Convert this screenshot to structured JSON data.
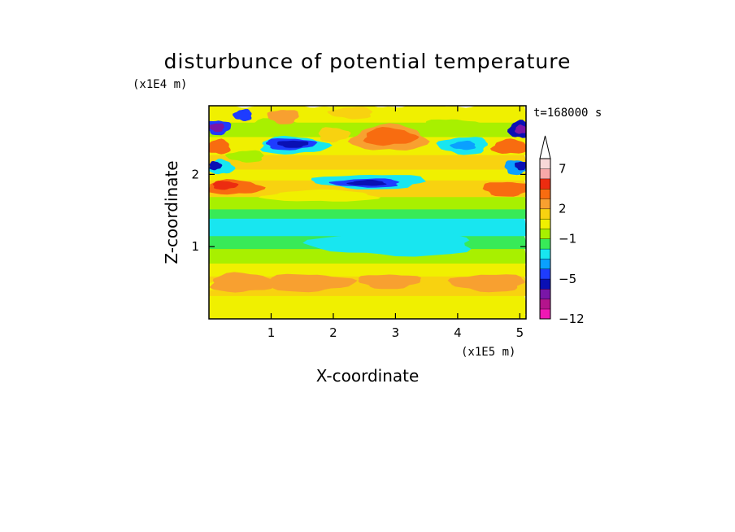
{
  "chart_data": {
    "type": "heatmap",
    "title": "disturbunce of potential temperature",
    "xlabel": "X-coordinate",
    "ylabel": "Z-coordinate",
    "x_unit": "(x1E5 m)",
    "y_unit": "(x1E4 m)",
    "time_label": "t=168000 s",
    "xlim": [
      0,
      5.1
    ],
    "ylim": [
      0,
      2.95
    ],
    "x_ticks": [
      1,
      2,
      3,
      4,
      5
    ],
    "x_tick_labels": [
      "1",
      "2",
      "3",
      "4",
      "5"
    ],
    "y_ticks": [
      1,
      2
    ],
    "y_tick_labels": [
      "1",
      "2"
    ],
    "colorbar": {
      "levels": [
        -12,
        -10,
        -8,
        -6,
        -5,
        -4,
        -3,
        -2,
        -1,
        0,
        1,
        2,
        3,
        4,
        5,
        7,
        9,
        11
      ],
      "labeled": [
        -12,
        -5,
        -1,
        2,
        7
      ],
      "labels": [
        "−12",
        "−5",
        "−1",
        "2",
        "7"
      ],
      "colors": [
        "#f018b4",
        "#b4148c",
        "#7a16a8",
        "#0a10b4",
        "#1e3cff",
        "#0aa0ff",
        "#18e6f0",
        "#38ea58",
        "#a8f000",
        "#f0f000",
        "#f8d210",
        "#f8a030",
        "#f86c10",
        "#ec2c10",
        "#f8a8a8",
        "#f8d8d8"
      ],
      "extend": "max"
    },
    "bands": [
      {
        "z": [
          0.0,
          0.1
        ],
        "level": 9
      },
      {
        "z": [
          0.1,
          0.35
        ],
        "level": 9
      },
      {
        "z": [
          0.35,
          0.62
        ],
        "level": 10
      },
      {
        "z": [
          0.62,
          0.8
        ],
        "level": 9
      },
      {
        "z": [
          0.8,
          1.0
        ],
        "level": 8
      },
      {
        "z": [
          1.0,
          1.18
        ],
        "level": 7
      },
      {
        "z": [
          1.18,
          1.42
        ],
        "level": 6
      },
      {
        "z": [
          1.42,
          1.55
        ],
        "level": 7
      },
      {
        "z": [
          1.55,
          1.72
        ],
        "level": 8
      },
      {
        "z": [
          1.72,
          1.95
        ],
        "level": 10
      },
      {
        "z": [
          1.95,
          2.1
        ],
        "level": 9
      },
      {
        "z": [
          2.1,
          2.3
        ],
        "level": 10
      },
      {
        "z": [
          2.3,
          2.55
        ],
        "level": 9
      },
      {
        "z": [
          2.55,
          2.75
        ],
        "level": 8
      },
      {
        "z": [
          2.75,
          2.95
        ],
        "level": 9
      }
    ],
    "features": [
      {
        "x": 0.1,
        "z": 0.45,
        "rx": 0.15,
        "rz": 0.06,
        "level": 9
      },
      {
        "x": 0.55,
        "z": 0.5,
        "rx": 0.55,
        "rz": 0.13,
        "level": 11
      },
      {
        "x": 1.6,
        "z": 0.5,
        "rx": 0.7,
        "rz": 0.12,
        "level": 11
      },
      {
        "x": 2.9,
        "z": 0.52,
        "rx": 0.5,
        "rz": 0.1,
        "level": 11
      },
      {
        "x": 4.5,
        "z": 0.5,
        "rx": 0.6,
        "rz": 0.12,
        "level": 11
      },
      {
        "x": 3.0,
        "z": 1.05,
        "rx": 1.3,
        "rz": 0.18,
        "level": 6
      },
      {
        "x": 1.8,
        "z": 1.7,
        "rx": 0.9,
        "rz": 0.08,
        "level": 9
      },
      {
        "x": 0.4,
        "z": 1.82,
        "rx": 0.45,
        "rz": 0.1,
        "level": 12
      },
      {
        "x": 0.25,
        "z": 1.85,
        "rx": 0.2,
        "rz": 0.06,
        "level": 13
      },
      {
        "x": 4.8,
        "z": 1.8,
        "rx": 0.4,
        "rz": 0.1,
        "level": 12
      },
      {
        "x": 2.6,
        "z": 1.9,
        "rx": 0.9,
        "rz": 0.1,
        "level": 6
      },
      {
        "x": 2.55,
        "z": 1.88,
        "rx": 0.55,
        "rz": 0.06,
        "level": 4
      },
      {
        "x": 2.55,
        "z": 1.88,
        "rx": 0.3,
        "rz": 0.04,
        "level": 3
      },
      {
        "x": 0.2,
        "z": 2.1,
        "rx": 0.2,
        "rz": 0.1,
        "level": 6
      },
      {
        "x": 0.1,
        "z": 2.12,
        "rx": 0.1,
        "rz": 0.06,
        "level": 3
      },
      {
        "x": 4.95,
        "z": 2.1,
        "rx": 0.2,
        "rz": 0.1,
        "level": 5
      },
      {
        "x": 5.02,
        "z": 2.12,
        "rx": 0.1,
        "rz": 0.06,
        "level": 3
      },
      {
        "x": 0.6,
        "z": 2.25,
        "rx": 0.3,
        "rz": 0.08,
        "level": 8
      },
      {
        "x": 0.15,
        "z": 2.38,
        "rx": 0.2,
        "rz": 0.1,
        "level": 12
      },
      {
        "x": 4.85,
        "z": 2.38,
        "rx": 0.3,
        "rz": 0.1,
        "level": 12
      },
      {
        "x": 1.35,
        "z": 2.4,
        "rx": 0.55,
        "rz": 0.12,
        "level": 6
      },
      {
        "x": 1.3,
        "z": 2.42,
        "rx": 0.4,
        "rz": 0.08,
        "level": 4
      },
      {
        "x": 1.35,
        "z": 2.42,
        "rx": 0.25,
        "rz": 0.05,
        "level": 3
      },
      {
        "x": 4.1,
        "z": 2.4,
        "rx": 0.4,
        "rz": 0.12,
        "level": 6
      },
      {
        "x": 4.1,
        "z": 2.4,
        "rx": 0.2,
        "rz": 0.06,
        "level": 5
      },
      {
        "x": 2.9,
        "z": 2.5,
        "rx": 0.6,
        "rz": 0.18,
        "level": 11
      },
      {
        "x": 2.9,
        "z": 2.52,
        "rx": 0.42,
        "rz": 0.12,
        "level": 12
      },
      {
        "x": 2.0,
        "z": 2.55,
        "rx": 0.25,
        "rz": 0.1,
        "level": 10
      },
      {
        "x": 0.15,
        "z": 2.65,
        "rx": 0.2,
        "rz": 0.1,
        "level": 4
      },
      {
        "x": 0.13,
        "z": 2.65,
        "rx": 0.12,
        "rz": 0.06,
        "level": 2
      },
      {
        "x": 0.55,
        "z": 2.82,
        "rx": 0.15,
        "rz": 0.08,
        "level": 4
      },
      {
        "x": 5.0,
        "z": 2.62,
        "rx": 0.18,
        "rz": 0.12,
        "level": 3
      },
      {
        "x": 5.02,
        "z": 2.62,
        "rx": 0.1,
        "rz": 0.06,
        "level": 2
      },
      {
        "x": 1.1,
        "z": 2.65,
        "rx": 0.45,
        "rz": 0.12,
        "level": 8
      },
      {
        "x": 3.9,
        "z": 2.65,
        "rx": 0.45,
        "rz": 0.12,
        "level": 8
      },
      {
        "x": 1.2,
        "z": 2.8,
        "rx": 0.25,
        "rz": 0.1,
        "level": 11
      },
      {
        "x": 2.3,
        "z": 2.85,
        "rx": 0.35,
        "rz": 0.08,
        "level": 10
      }
    ]
  }
}
